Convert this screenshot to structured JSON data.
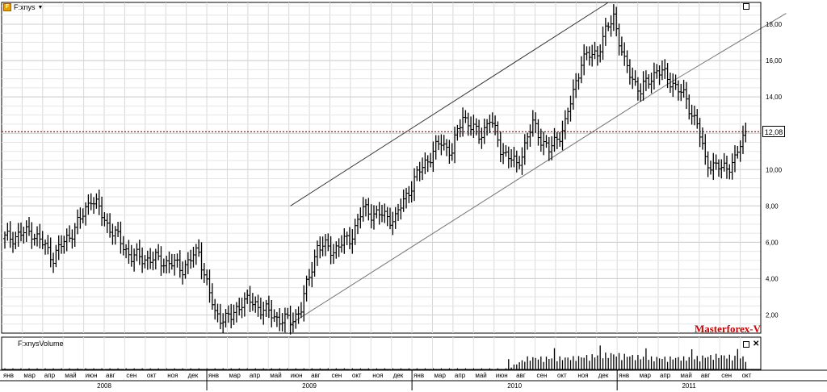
{
  "header": {
    "symbol": "F:xnys",
    "icon": "symbol-icon",
    "menu_icon": "chevron-down-icon"
  },
  "volume_panel": {
    "title": "F:xnysVolume"
  },
  "watermark": "Masterforex-V",
  "colors": {
    "bars": "#000000",
    "grid": "#d8d8d8",
    "hline": "#e00000",
    "watermark": "#d00000"
  },
  "chart_data": [
    {
      "type": "bar",
      "subtype": "ohlc",
      "title": "",
      "xlabel": "",
      "ylabel": "",
      "ylim": [
        1.0,
        19.2
      ],
      "yticks": [
        "2,00",
        "4,00",
        "6,00",
        "8,00",
        "10,00",
        "12,00",
        "14,00",
        "16,00",
        "18,00"
      ],
      "price_tag": "12,08",
      "price_line": 12.08,
      "months": [
        "янв",
        "мар",
        "апр",
        "май",
        "июн",
        "авг",
        "сен",
        "окт",
        "ноя",
        "дек",
        "янв",
        "мар",
        "апр",
        "май",
        "июн",
        "авг",
        "сен",
        "окт",
        "ноя",
        "дек",
        "янв",
        "мар",
        "апр",
        "май",
        "июн",
        "авг",
        "сен",
        "окт",
        "ноя",
        "дек",
        "янв",
        "мар",
        "апр",
        "май",
        "авг",
        "сен",
        "окт"
      ],
      "years": [
        "2008",
        "2009",
        "2010",
        "2011"
      ],
      "keypoints": [
        [
          0,
          6.2
        ],
        [
          10,
          6.6
        ],
        [
          18,
          5.2
        ],
        [
          28,
          7.2
        ],
        [
          32,
          8.5
        ],
        [
          38,
          7.0
        ],
        [
          47,
          5.2
        ],
        [
          58,
          5.0
        ],
        [
          66,
          4.6
        ],
        [
          72,
          5.5
        ],
        [
          78,
          2.0
        ],
        [
          84,
          1.8
        ],
        [
          88,
          2.8
        ],
        [
          93,
          2.6
        ],
        [
          100,
          1.9
        ],
        [
          106,
          1.6
        ],
        [
          110,
          2.4
        ],
        [
          116,
          5.8
        ],
        [
          122,
          5.6
        ],
        [
          128,
          6.2
        ],
        [
          133,
          7.8
        ],
        [
          139,
          7.5
        ],
        [
          145,
          7.3
        ],
        [
          150,
          8.9
        ],
        [
          156,
          10.4
        ],
        [
          162,
          11.5
        ],
        [
          166,
          11.0
        ],
        [
          170,
          13.0
        ],
        [
          176,
          11.8
        ],
        [
          180,
          12.8
        ],
        [
          184,
          11.2
        ],
        [
          190,
          10.2
        ],
        [
          196,
          12.5
        ],
        [
          202,
          11.0
        ],
        [
          208,
          12.5
        ],
        [
          214,
          16.0
        ],
        [
          220,
          16.5
        ],
        [
          226,
          18.5
        ],
        [
          230,
          15.8
        ],
        [
          236,
          14.3
        ],
        [
          242,
          15.5
        ],
        [
          248,
          14.8
        ],
        [
          253,
          13.8
        ],
        [
          257,
          12.5
        ],
        [
          260,
          10.5
        ],
        [
          266,
          10.0
        ],
        [
          271,
          10.5
        ],
        [
          275,
          12.1
        ]
      ],
      "channel_lines": [
        {
          "name": "upper",
          "points": [
            [
              106,
              8.0
            ],
            [
              224,
              19.2
            ]
          ]
        },
        {
          "name": "lower",
          "points": [
            [
              106,
              1.5
            ],
            [
              246,
              14.7
            ],
            [
              290,
              18.6
            ]
          ]
        }
      ]
    },
    {
      "type": "bar",
      "subtype": "volume",
      "title": "F:xnysVolume",
      "keypoints": [
        [
          0,
          0
        ],
        [
          100,
          0
        ],
        [
          186,
          0
        ],
        [
          194,
          0.45
        ],
        [
          210,
          0.45
        ],
        [
          225,
          0.6
        ],
        [
          240,
          0.45
        ],
        [
          255,
          0.45
        ],
        [
          265,
          0.55
        ],
        [
          275,
          0.45
        ]
      ]
    }
  ]
}
